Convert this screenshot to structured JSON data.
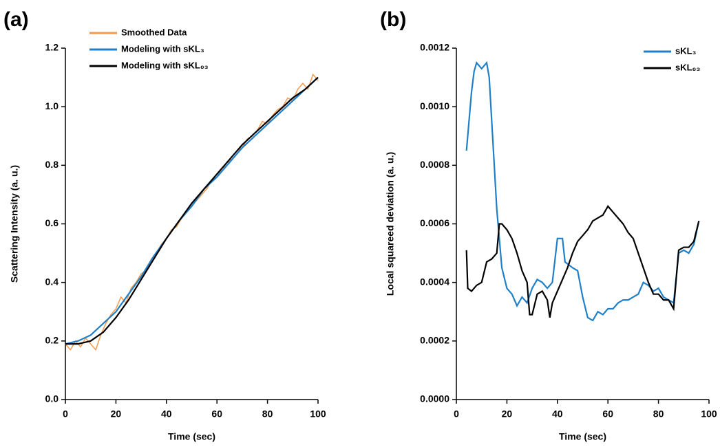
{
  "chart_data": [
    {
      "type": "line",
      "label": "(a)",
      "xlabel": "Time (sec)",
      "ylabel": "Scattering Intensity (a. u.)",
      "xlim": [
        0,
        100
      ],
      "xticks": [
        0,
        20,
        40,
        60,
        80,
        100
      ],
      "ylim": [
        0,
        1.2
      ],
      "yticks": [
        {
          "value": 0,
          "label": "0.0"
        },
        0.2,
        0.4,
        0.6,
        0.8,
        {
          "value": 1,
          "label": "1.0"
        },
        1.2
      ],
      "legend": "upper center",
      "series": [
        {
          "name": "Smoothed Data",
          "color": "#f39a4c",
          "x": [
            0,
            2,
            4,
            6,
            8,
            10,
            12,
            14,
            16,
            18,
            20,
            22,
            24,
            26,
            28,
            30,
            32,
            34,
            36,
            38,
            40,
            42,
            44,
            46,
            48,
            50,
            52,
            54,
            56,
            58,
            60,
            62,
            64,
            66,
            68,
            70,
            72,
            74,
            76,
            78,
            80,
            82,
            84,
            86,
            88,
            90,
            92,
            94,
            96,
            98,
            100
          ],
          "values": [
            0.19,
            0.17,
            0.2,
            0.18,
            0.21,
            0.19,
            0.17,
            0.22,
            0.26,
            0.29,
            0.31,
            0.35,
            0.33,
            0.38,
            0.4,
            0.43,
            0.44,
            0.48,
            0.5,
            0.53,
            0.55,
            0.58,
            0.59,
            0.62,
            0.64,
            0.66,
            0.68,
            0.7,
            0.72,
            0.75,
            0.76,
            0.79,
            0.8,
            0.83,
            0.85,
            0.86,
            0.89,
            0.9,
            0.92,
            0.95,
            0.94,
            0.97,
            0.99,
            1.0,
            1.03,
            1.02,
            1.06,
            1.08,
            1.06,
            1.11,
            1.09
          ]
        },
        {
          "name": "Modeling with sKL₃",
          "color": "#1f7fc8",
          "x": [
            0,
            5,
            10,
            15,
            20,
            25,
            30,
            35,
            40,
            45,
            50,
            55,
            60,
            65,
            70,
            75,
            80,
            85,
            90,
            95,
            100
          ],
          "values": [
            0.19,
            0.2,
            0.22,
            0.26,
            0.3,
            0.36,
            0.42,
            0.49,
            0.55,
            0.61,
            0.66,
            0.72,
            0.76,
            0.81,
            0.86,
            0.9,
            0.94,
            0.98,
            1.02,
            1.06,
            1.1
          ]
        },
        {
          "name": "Modeling with sKL₀₃",
          "color": "#000000",
          "x": [
            0,
            5,
            10,
            15,
            20,
            25,
            30,
            35,
            40,
            45,
            50,
            55,
            60,
            65,
            70,
            75,
            80,
            85,
            90,
            95,
            100
          ],
          "values": [
            0.19,
            0.19,
            0.2,
            0.23,
            0.28,
            0.34,
            0.41,
            0.48,
            0.55,
            0.61,
            0.67,
            0.72,
            0.77,
            0.82,
            0.87,
            0.91,
            0.95,
            0.99,
            1.03,
            1.06,
            1.1
          ]
        }
      ]
    },
    {
      "type": "line",
      "label": "(b)",
      "xlabel": "Time (sec)",
      "ylabel": "Local squareed deviation (a. u.)",
      "xlim": [
        0,
        100
      ],
      "xticks": [
        0,
        20,
        40,
        60,
        80,
        100
      ],
      "ylim": [
        0,
        0.0012
      ],
      "yticks": [
        {
          "value": 0,
          "label": "0.0000"
        },
        {
          "value": 0.0002,
          "label": "0.0002"
        },
        {
          "value": 0.0004,
          "label": "0.0004"
        },
        {
          "value": 0.0006,
          "label": "0.0006"
        },
        {
          "value": 0.0008,
          "label": "0.0008"
        },
        {
          "value": 0.001,
          "label": "0.0010"
        },
        {
          "value": 0.0012,
          "label": "0.0012"
        }
      ],
      "legend": "upper right",
      "series": [
        {
          "name": "sKL₃",
          "color": "#1f7fc8",
          "x": [
            4,
            5,
            6,
            7,
            8,
            10,
            12,
            13,
            14,
            15,
            16,
            17,
            18,
            20,
            22,
            24,
            26,
            28,
            30,
            32,
            34,
            36,
            38,
            40,
            42,
            43,
            46,
            48,
            50,
            52,
            54,
            56,
            58,
            60,
            62,
            64,
            66,
            68,
            70,
            72,
            74,
            76,
            78,
            80,
            82,
            84,
            86,
            88,
            90,
            92,
            94,
            96
          ],
          "values": [
            0.00085,
            0.00095,
            0.00105,
            0.00112,
            0.00115,
            0.00113,
            0.00115,
            0.0011,
            0.00095,
            0.0008,
            0.00065,
            0.00055,
            0.00045,
            0.00038,
            0.00036,
            0.00032,
            0.00035,
            0.00033,
            0.00038,
            0.00041,
            0.0004,
            0.00038,
            0.0004,
            0.00055,
            0.00055,
            0.00047,
            0.00045,
            0.00044,
            0.00035,
            0.00028,
            0.00027,
            0.0003,
            0.00029,
            0.00031,
            0.00031,
            0.00033,
            0.00034,
            0.00034,
            0.00035,
            0.00036,
            0.0004,
            0.00039,
            0.00037,
            0.00038,
            0.00035,
            0.00034,
            0.00033,
            0.0005,
            0.00051,
            0.0005,
            0.00053,
            0.00061
          ]
        },
        {
          "name": "sKL₀₃",
          "color": "#000000",
          "x": [
            4,
            4.5,
            6,
            8,
            10,
            12,
            14,
            16,
            17,
            18,
            20,
            22,
            24,
            26,
            28,
            29,
            30,
            32,
            34,
            36,
            37,
            38,
            40,
            42,
            44,
            46,
            48,
            50,
            52,
            54,
            56,
            58,
            60,
            62,
            64,
            66,
            68,
            70,
            72,
            74,
            76,
            78,
            80,
            82,
            84,
            86,
            88,
            90,
            92,
            94,
            96
          ],
          "values": [
            0.00051,
            0.00038,
            0.00037,
            0.00039,
            0.0004,
            0.00047,
            0.00048,
            0.0005,
            0.0006,
            0.0006,
            0.00058,
            0.00055,
            0.0005,
            0.00044,
            0.0004,
            0.00029,
            0.00029,
            0.00036,
            0.00037,
            0.00034,
            0.00028,
            0.00033,
            0.00037,
            0.00041,
            0.00045,
            0.0005,
            0.00054,
            0.00056,
            0.00058,
            0.00061,
            0.00062,
            0.00063,
            0.00066,
            0.00064,
            0.00062,
            0.0006,
            0.00057,
            0.00055,
            0.0005,
            0.00045,
            0.0004,
            0.00036,
            0.00036,
            0.00034,
            0.00034,
            0.00031,
            0.00051,
            0.00052,
            0.00052,
            0.00054,
            0.00061
          ]
        }
      ]
    }
  ]
}
